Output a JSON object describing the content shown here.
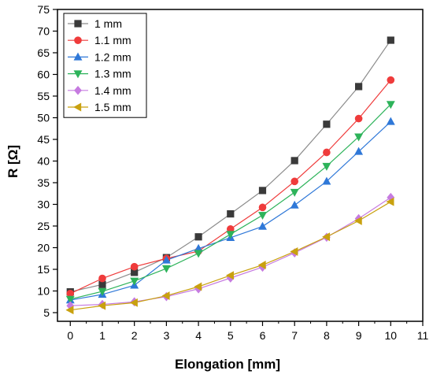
{
  "chart_data": {
    "type": "line",
    "xlabel": "Elongation [mm]",
    "ylabel": "R [Ω]",
    "xlim": [
      -0.4,
      11
    ],
    "ylim": [
      3,
      75
    ],
    "xticks": [
      0,
      1,
      2,
      3,
      4,
      5,
      6,
      7,
      8,
      9,
      10,
      11
    ],
    "yticks": [
      5,
      10,
      15,
      20,
      25,
      30,
      35,
      40,
      45,
      50,
      55,
      60,
      65,
      70,
      75
    ],
    "grid": false,
    "legend_position": "top-left",
    "x": [
      0,
      1,
      2,
      3,
      4,
      5,
      6,
      7,
      8,
      9,
      10
    ],
    "series": [
      {
        "name": "1 mm",
        "marker": "square",
        "color": "#3a3a3a",
        "line_color": "#8c8c8c",
        "values": [
          9.8,
          11.5,
          14.3,
          17.7,
          22.5,
          27.8,
          33.2,
          40.1,
          48.5,
          57.2,
          67.9
        ]
      },
      {
        "name": "1.1 mm",
        "marker": "circle",
        "color": "#ef3b3b",
        "line_color": "#ef3b3b",
        "values": [
          9.4,
          12.9,
          15.6,
          17.5,
          19.2,
          24.3,
          29.3,
          35.3,
          42.0,
          49.8,
          58.7
        ]
      },
      {
        "name": "1.2 mm",
        "marker": "triangle-up",
        "color": "#2f78d8",
        "line_color": "#2f78d8",
        "values": [
          7.9,
          9.2,
          11.3,
          17.1,
          19.8,
          22.3,
          24.9,
          29.8,
          35.3,
          42.2,
          49.1
        ]
      },
      {
        "name": "1.3 mm",
        "marker": "triangle-down",
        "color": "#2db35a",
        "line_color": "#2db35a",
        "values": [
          8.1,
          9.9,
          12.3,
          15.2,
          18.7,
          23.1,
          27.5,
          32.8,
          38.8,
          45.6,
          53.1
        ]
      },
      {
        "name": "1.4 mm",
        "marker": "diamond",
        "color": "#c67be0",
        "line_color": "#c67be0",
        "values": [
          6.6,
          6.9,
          7.5,
          8.7,
          10.5,
          13.0,
          15.5,
          18.8,
          22.4,
          26.7,
          31.6
        ]
      },
      {
        "name": "1.5 mm",
        "marker": "triangle-left",
        "color": "#c9a10f",
        "line_color": "#c9a10f",
        "values": [
          5.6,
          6.6,
          7.3,
          8.9,
          11.0,
          13.6,
          16.0,
          19.1,
          22.5,
          26.2,
          30.6
        ]
      }
    ]
  }
}
